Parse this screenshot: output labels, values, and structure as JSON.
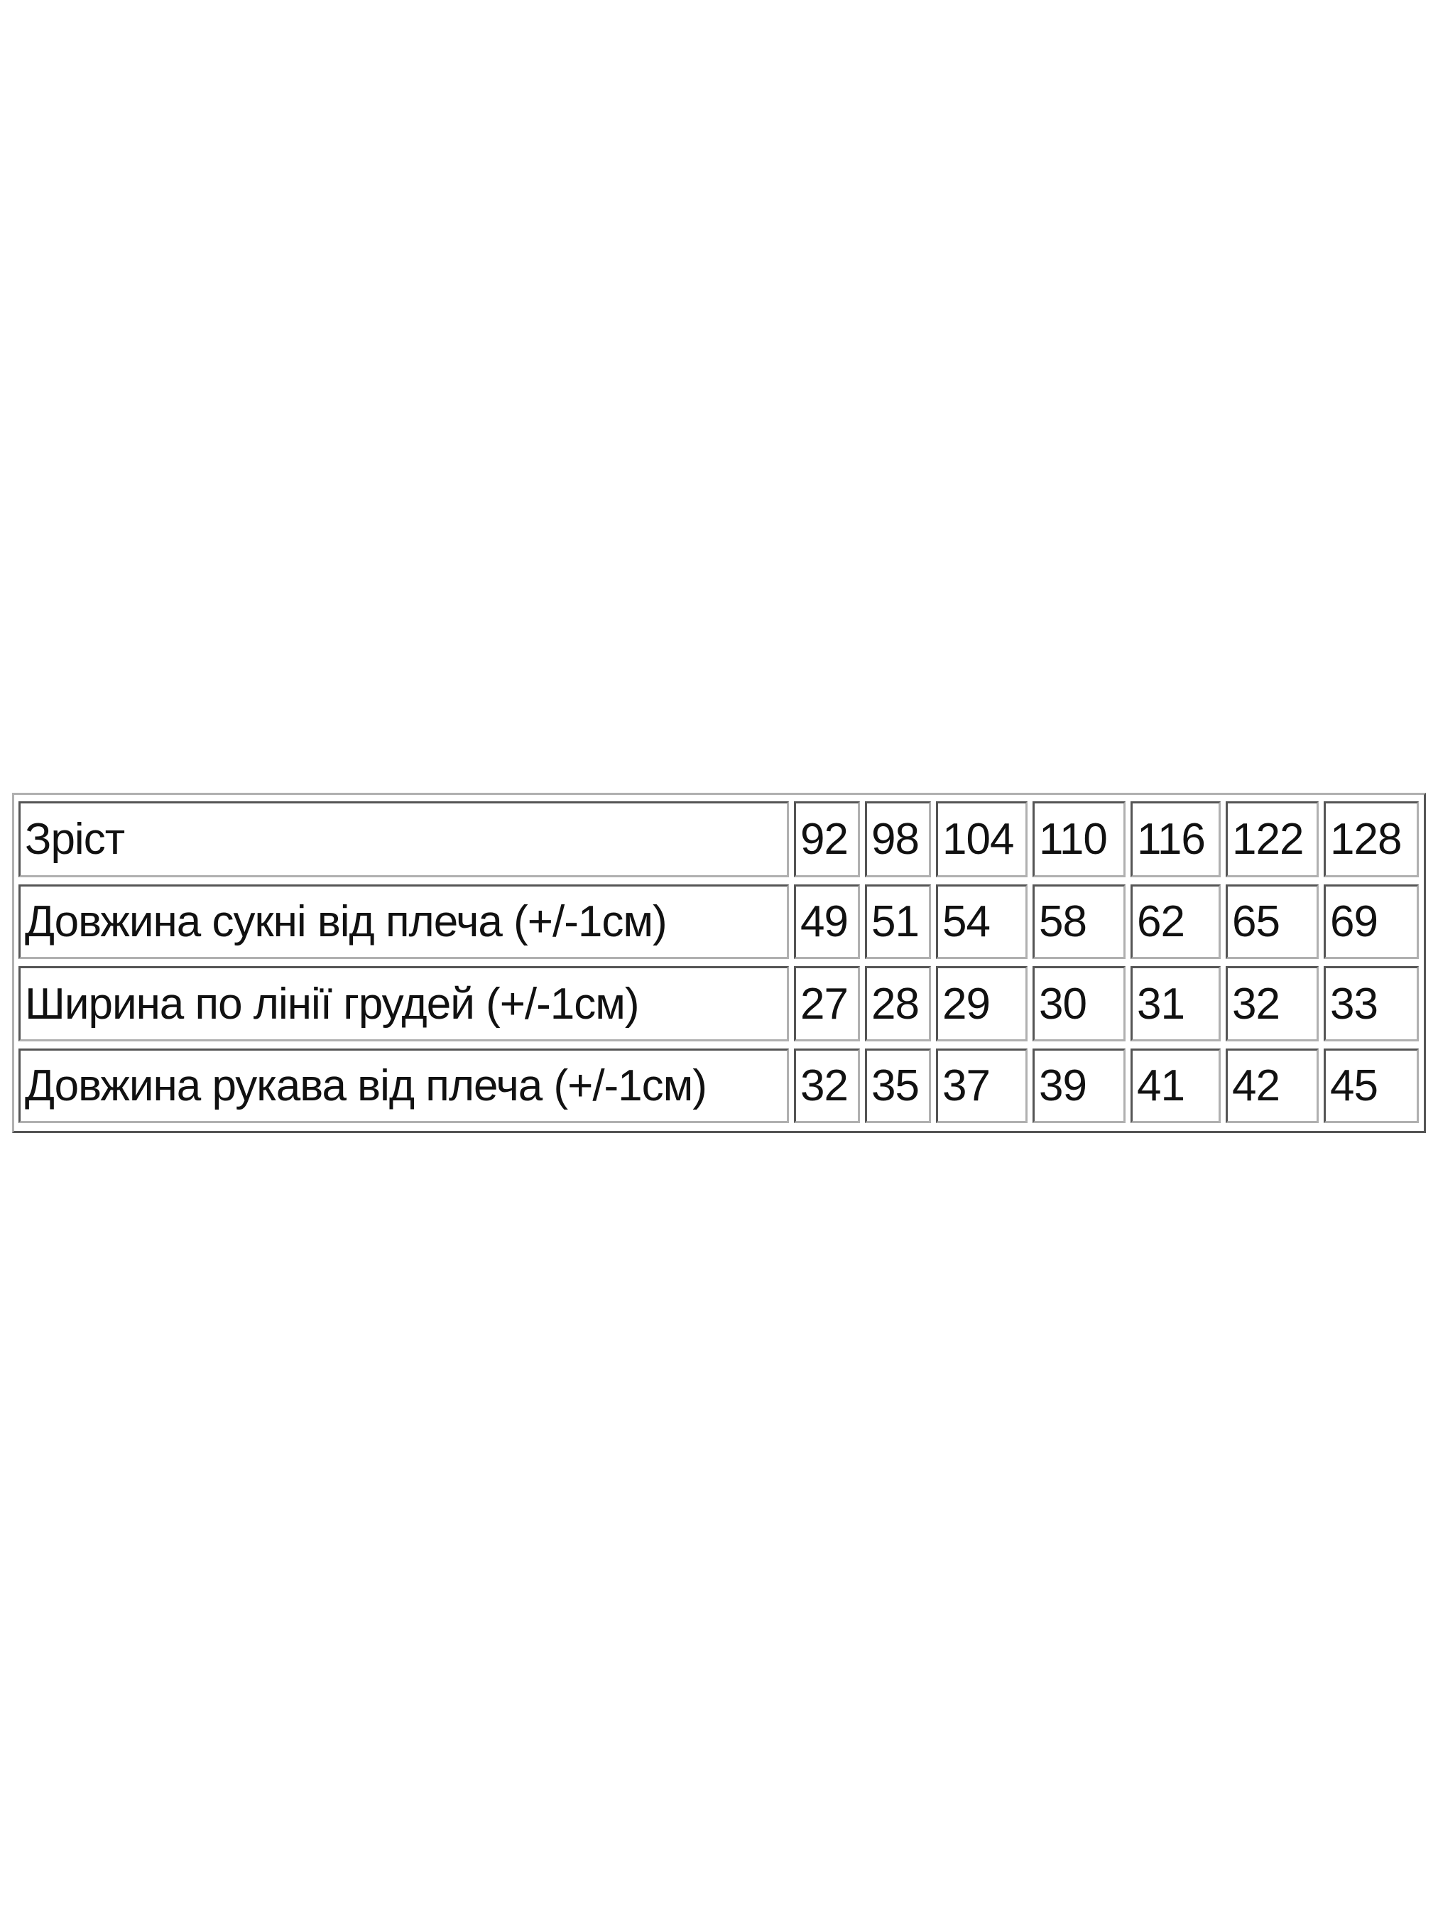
{
  "table": {
    "rows": [
      [
        "Зріст",
        "92",
        "98",
        "104",
        "110",
        "116",
        "122",
        "128"
      ],
      [
        "Довжина сукні від плеча (+/-1см)",
        "49",
        "51",
        "54",
        "58",
        "62",
        "65",
        "69"
      ],
      [
        "Ширина по лінії грудей (+/-1см)",
        "27",
        "28",
        "29",
        "30",
        "31",
        "32",
        "33"
      ],
      [
        "Довжина рукава від плеча (+/-1см)",
        "32",
        "35",
        "37",
        "39",
        "41",
        "42",
        "45"
      ]
    ]
  }
}
